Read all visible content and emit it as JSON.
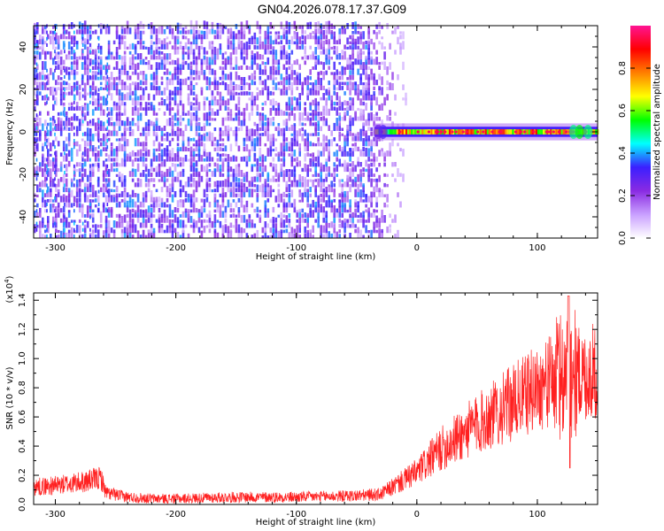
{
  "title": "GN04.2026.078.17.37.G09",
  "chart_data": [
    {
      "type": "heatmap",
      "xlabel": "Height of straight line (km)",
      "ylabel": "Frequency (Hz)",
      "xlim": [
        -318,
        150
      ],
      "ylim": [
        -50,
        50
      ],
      "xticks": [
        -300,
        -200,
        -100,
        0,
        100
      ],
      "yticks": [
        -40,
        -20,
        0,
        20,
        40
      ],
      "colorbar": {
        "label": "Normalized spectral amplitude",
        "range": [
          0,
          1
        ],
        "ticks": [
          "0.0",
          "0.2",
          "0.4",
          "0.6",
          "0.8"
        ],
        "colors": [
          "#ffffff",
          "#c9a0ff",
          "#8a2be2",
          "#3b1fff",
          "#00ffff",
          "#00ff00",
          "#ffff00",
          "#ff7f00",
          "#ff0000",
          "#ff1493"
        ]
      },
      "regions": [
        {
          "name": "noise",
          "x_range": [
            -318,
            -20
          ],
          "freq_range": [
            -50,
            50
          ],
          "amplitude_range": [
            0.05,
            0.25
          ]
        },
        {
          "name": "signal",
          "x_range": [
            -35,
            150
          ],
          "freq_center": 0,
          "freq_width": 4,
          "amplitude_range": [
            0.6,
            1.0
          ]
        }
      ]
    },
    {
      "type": "line",
      "xlabel": "Height of straight line (km)",
      "ylabel": "SNR (10 * v/v)",
      "yscale_label": "(x10",
      "yscale_exp": "4",
      "yscale_close": ")",
      "xlim": [
        -318,
        150
      ],
      "ylim": [
        0,
        1.45
      ],
      "xticks": [
        -300,
        -200,
        -100,
        0,
        100
      ],
      "yticks": [
        "0.0",
        "0.2",
        "0.4",
        "0.6",
        "0.8",
        "1.0",
        "1.2",
        "1.4"
      ],
      "color": "#ff2020",
      "trend": {
        "x": [
          -318,
          -300,
          -280,
          -262,
          -258,
          -240,
          -220,
          -200,
          -150,
          -100,
          -50,
          -30,
          -20,
          0,
          20,
          50,
          80,
          100,
          115,
          125,
          130,
          140,
          150
        ],
        "y": [
          0.12,
          0.13,
          0.15,
          0.18,
          0.08,
          0.05,
          0.04,
          0.04,
          0.05,
          0.05,
          0.06,
          0.07,
          0.12,
          0.22,
          0.38,
          0.55,
          0.7,
          0.8,
          0.86,
          0.9,
          0.9,
          0.88,
          0.92
        ]
      },
      "spike": {
        "x": 126,
        "y_max": 1.43,
        "y_min": 0.25
      }
    }
  ]
}
